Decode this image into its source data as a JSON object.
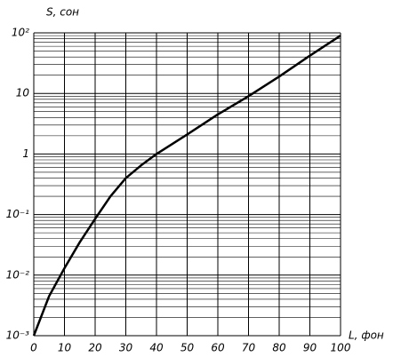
{
  "chart_data": {
    "type": "line",
    "y_label": "S, сон",
    "x_label": "L, фон",
    "x": [
      0,
      5,
      10,
      15,
      20,
      25,
      30,
      35,
      40,
      50,
      60,
      70,
      80,
      90,
      100
    ],
    "values": [
      0.001,
      0.0045,
      0.013,
      0.035,
      0.085,
      0.2,
      0.4,
      0.65,
      1,
      2.1,
      4.5,
      9,
      19,
      42,
      90
    ],
    "color": "#000000",
    "xlim": [
      0,
      100
    ],
    "xticks": [
      0,
      10,
      20,
      30,
      40,
      50,
      60,
      70,
      80,
      90,
      100
    ],
    "ylim": [
      0.001,
      100
    ],
    "log_y": true,
    "yticks": [
      {
        "value": 0.001,
        "label": "10⁻³"
      },
      {
        "value": 0.01,
        "label": "10⁻²"
      },
      {
        "value": 0.1,
        "label": "10⁻¹"
      },
      1,
      10,
      {
        "value": 100,
        "label": "10²"
      }
    ],
    "y_minor_ticks": [
      0.002,
      0.003,
      0.004,
      0.005,
      0.006,
      0.007,
      0.008,
      0.009,
      0.02,
      0.03,
      0.04,
      0.05,
      0.06,
      0.07,
      0.08,
      0.09,
      0.2,
      0.3,
      0.4,
      0.5,
      0.6,
      0.7,
      0.8,
      0.9,
      2,
      3,
      4,
      5,
      6,
      7,
      8,
      9,
      20,
      30,
      40,
      50,
      60,
      70,
      80,
      90
    ],
    "grid": true
  }
}
